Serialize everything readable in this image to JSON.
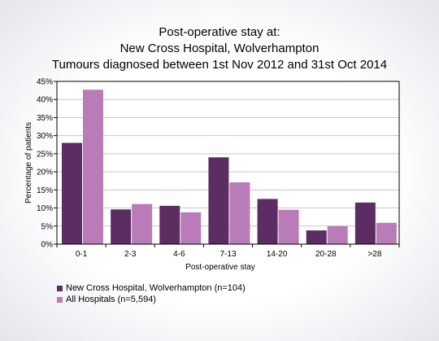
{
  "chart_data": {
    "type": "bar",
    "title": [
      "Post-operative stay at:",
      "New Cross Hospital, Wolverhampton",
      "Tumours diagnosed between 1st Nov 2012 and 31st Oct 2014"
    ],
    "xlabel": "Post-operative stay",
    "ylabel": "Percentage of patients",
    "categories": [
      "0-1",
      "2-3",
      "4-6",
      "7-13",
      "14-20",
      "20-28",
      ">28"
    ],
    "ylim": [
      0,
      45
    ],
    "yticks": [
      "0%",
      "5%",
      "10%",
      "15%",
      "20%",
      "25%",
      "30%",
      "35%",
      "40%",
      "45%"
    ],
    "grid": true,
    "legend_position": "bottom-left",
    "series": [
      {
        "name": "New Cross Hospital, Wolverhampton (n=104)",
        "color": "#5c2d62",
        "values": [
          28,
          9.6,
          10.6,
          24.0,
          12.5,
          3.8,
          11.5
        ]
      },
      {
        "name": "All Hospitals (n=5,594)",
        "color": "#b97cb8",
        "values": [
          42.7,
          11.1,
          8.8,
          17.1,
          9.5,
          5.0,
          5.9
        ]
      }
    ]
  }
}
